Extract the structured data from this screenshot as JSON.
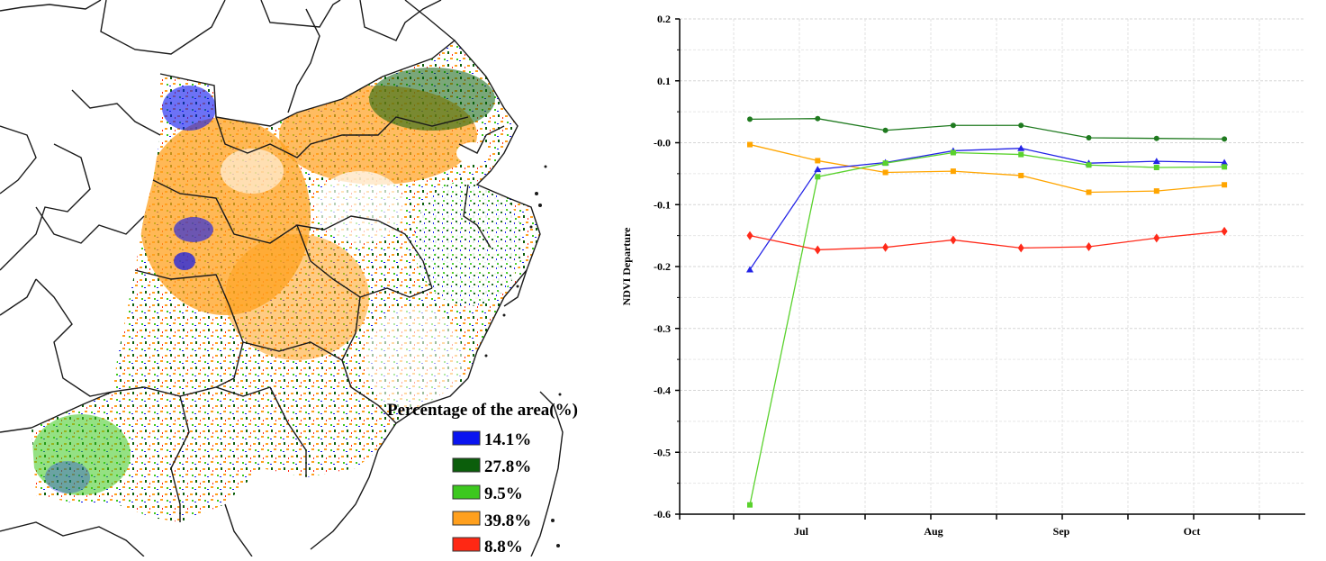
{
  "map": {
    "legend_title": "Percentage of the area(%)",
    "legend": [
      {
        "label": "14.1%",
        "color": "#0a14f0"
      },
      {
        "label": "27.8%",
        "color": "#0b5e0b"
      },
      {
        "label": "9.5%",
        "color": "#3cc81e"
      },
      {
        "label": "39.8%",
        "color": "#ffa01e"
      },
      {
        "label": "8.8%",
        "color": "#ff2814"
      }
    ]
  },
  "chart_data": {
    "type": "line",
    "title": "",
    "xlabel": "",
    "ylabel": "NDVI Departure",
    "ylim": [
      -0.6,
      0.2
    ],
    "yticks": [
      "0.2",
      "0.1",
      "-0.0",
      "-0.1",
      "-0.2",
      "-0.3",
      "-0.4",
      "-0.5",
      "-0.6"
    ],
    "month_labels": [
      "Jul",
      "Aug",
      "Sep",
      "Oct"
    ],
    "x": [
      1,
      2,
      3,
      4,
      5,
      6,
      7,
      8
    ],
    "grid": true,
    "series": [
      {
        "color": "#1f7a1f",
        "marker": "circle",
        "values": [
          0.038,
          0.039,
          0.02,
          0.028,
          0.028,
          0.008,
          0.007,
          0.006
        ]
      },
      {
        "color": "#ffa500",
        "marker": "square",
        "values": [
          -0.003,
          -0.029,
          -0.048,
          -0.046,
          -0.053,
          -0.08,
          -0.078,
          -0.068
        ]
      },
      {
        "color": "#2323e6",
        "marker": "triangle",
        "values": [
          -0.205,
          -0.043,
          -0.032,
          -0.013,
          -0.009,
          -0.033,
          -0.03,
          -0.032
        ]
      },
      {
        "color": "#5ad22d",
        "marker": "square",
        "values": [
          -0.585,
          -0.055,
          -0.033,
          -0.016,
          -0.019,
          -0.036,
          -0.04,
          -0.039
        ]
      },
      {
        "color": "#ff2a1a",
        "marker": "diamond",
        "values": [
          -0.15,
          -0.173,
          -0.169,
          -0.157,
          -0.17,
          -0.168,
          -0.154,
          -0.143
        ]
      }
    ]
  }
}
